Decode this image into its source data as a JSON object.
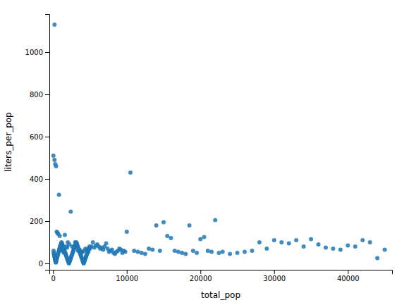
{
  "chart_data": {
    "type": "scatter",
    "xlabel": "total_pop",
    "ylabel": "liters_per_pop",
    "color": "#1f77b4",
    "grid": false,
    "xlim": [
      -500,
      46000
    ],
    "ylim": [
      -30,
      1180
    ],
    "xticks": [
      0,
      10000,
      20000,
      30000,
      40000
    ],
    "yticks": [
      0,
      200,
      400,
      600,
      800,
      1000
    ],
    "x": [
      200,
      200,
      300,
      400,
      500,
      600,
      700,
      800,
      900,
      1000,
      1100,
      1200,
      1300,
      1400,
      1500,
      1600,
      1700,
      1800,
      1900,
      2000,
      2200,
      2400,
      2600,
      2800,
      3000,
      3200,
      3400,
      3600,
      3800,
      4000,
      4200,
      4400,
      4600,
      4800,
      5000,
      5200,
      5400,
      5600,
      5800,
      6000,
      6200,
      6400,
      6600,
      6800,
      7000,
      7200,
      7400,
      7600,
      7800,
      8000,
      8200,
      8400,
      8600,
      8800,
      9000,
      9200,
      9400,
      9600,
      9800,
      10000,
      10500,
      11000,
      11500,
      12000,
      12500,
      13000,
      13500,
      14000,
      14500,
      15000,
      15500,
      16000,
      16500,
      17000,
      17500,
      18000,
      18500,
      19000,
      19500,
      20000,
      20500,
      21000,
      21500,
      22000,
      22500,
      23000,
      24000,
      25000,
      26000,
      27000,
      28000,
      29000,
      30000,
      31000,
      32000,
      33000,
      34000,
      35000,
      36000,
      37000,
      38000,
      39000,
      40000,
      41000,
      42000,
      43000,
      44000,
      45000,
      50,
      80,
      100,
      120,
      150,
      180,
      210,
      240,
      270,
      300,
      330,
      360,
      390,
      420,
      450,
      480,
      520,
      560,
      600,
      640,
      680,
      720,
      760,
      800,
      840,
      880,
      920,
      960,
      1000,
      1050,
      1100,
      1150,
      1200,
      1250,
      1300,
      1350,
      1400,
      1450,
      1500,
      1550,
      1600,
      1650,
      1700,
      1750,
      1800,
      1850,
      1900,
      1950,
      2000,
      2050,
      2100,
      2150,
      2200,
      2250,
      2300,
      2350,
      2400,
      2450,
      2500,
      2550,
      2600,
      2650,
      2700,
      2750,
      2800,
      2850,
      2900,
      2950,
      3000,
      3050,
      3100,
      3150,
      3200,
      3250,
      3300,
      3350,
      3400,
      3450,
      3500,
      3550,
      3600,
      3650,
      3700,
      3750,
      3800,
      3850,
      3900,
      3950,
      4000,
      4050,
      4100,
      4150,
      4200,
      4250,
      4300,
      4350,
      4400,
      4450,
      4500,
      4550,
      4600,
      4650,
      4700,
      4750,
      4800,
      4850,
      4900,
      4950
    ],
    "y": [
      1130,
      490,
      470,
      460,
      150,
      145,
      140,
      325,
      130,
      75,
      70,
      65,
      60,
      55,
      50,
      135,
      45,
      80,
      75,
      100,
      90,
      245,
      80,
      75,
      100,
      95,
      60,
      65,
      50,
      55,
      60,
      70,
      65,
      55,
      70,
      80,
      100,
      75,
      85,
      90,
      80,
      70,
      75,
      65,
      80,
      95,
      70,
      55,
      60,
      65,
      50,
      45,
      55,
      60,
      70,
      65,
      50,
      60,
      55,
      150,
      430,
      60,
      55,
      50,
      45,
      70,
      65,
      180,
      60,
      195,
      130,
      120,
      60,
      55,
      50,
      45,
      180,
      60,
      50,
      115,
      125,
      60,
      55,
      205,
      50,
      55,
      45,
      50,
      55,
      60,
      100,
      70,
      110,
      100,
      95,
      110,
      80,
      115,
      90,
      75,
      70,
      65,
      85,
      80,
      110,
      100,
      25,
      65,
      510,
      60,
      50,
      45,
      40,
      35,
      30,
      25,
      20,
      15,
      10,
      5,
      5,
      10,
      15,
      20,
      25,
      30,
      35,
      40,
      45,
      50,
      55,
      60,
      65,
      70,
      75,
      80,
      85,
      90,
      95,
      100,
      95,
      90,
      85,
      80,
      75,
      70,
      65,
      60,
      55,
      50,
      45,
      40,
      35,
      30,
      25,
      20,
      15,
      10,
      5,
      0,
      5,
      10,
      15,
      20,
      25,
      30,
      35,
      40,
      45,
      50,
      55,
      60,
      65,
      70,
      75,
      80,
      85,
      90,
      95,
      100,
      95,
      90,
      85,
      80,
      75,
      70,
      65,
      60,
      55,
      50,
      45,
      40,
      35,
      30,
      25,
      20,
      15,
      10,
      5,
      0,
      5,
      10,
      15,
      20,
      25,
      30,
      35,
      40,
      45,
      50,
      55,
      60,
      65,
      70,
      75,
      80
    ]
  }
}
